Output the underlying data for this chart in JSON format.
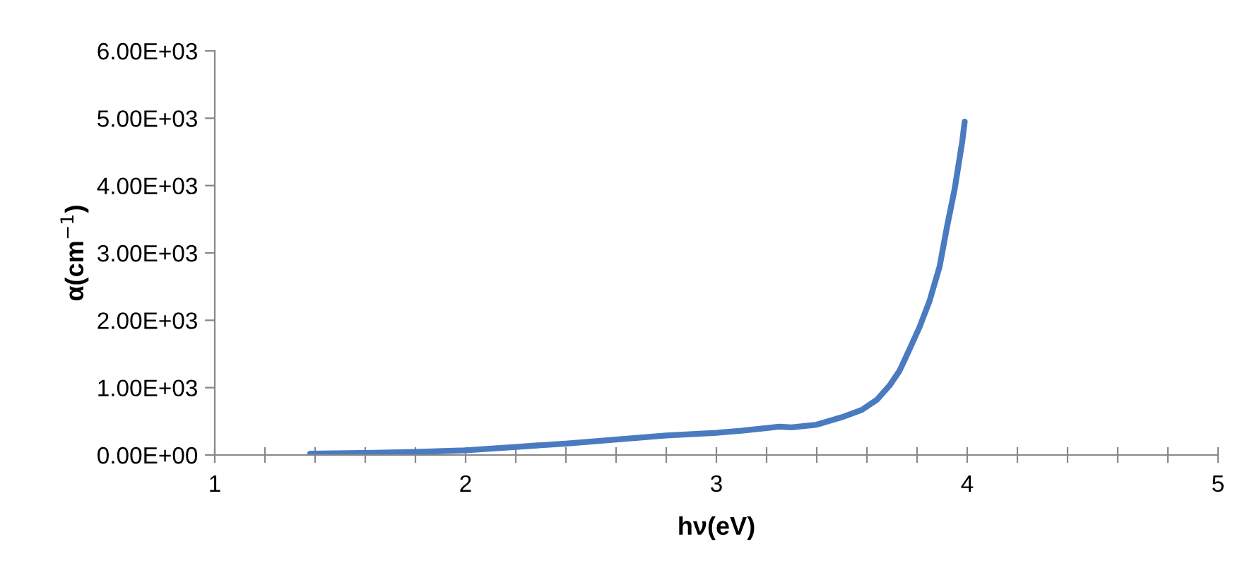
{
  "chart_data": {
    "type": "line",
    "xlabel": "hν(eV)",
    "ylabel": "α(cm$^{−1}$)",
    "series": [
      {
        "color": "#4a7bc0",
        "x": [
          1.38,
          1.6,
          1.8,
          2.0,
          2.2,
          2.4,
          2.6,
          2.8,
          3.0,
          3.1,
          3.2,
          3.25,
          3.3,
          3.4,
          3.5,
          3.58,
          3.64,
          3.69,
          3.73,
          3.77,
          3.81,
          3.85,
          3.89,
          3.92,
          3.95,
          3.98,
          3.99
        ],
        "values": [
          20,
          30,
          45,
          70,
          120,
          170,
          230,
          290,
          330,
          360,
          400,
          420,
          410,
          450,
          560,
          670,
          820,
          1030,
          1250,
          1570,
          1900,
          2290,
          2800,
          3400,
          3950,
          4650,
          4950
        ]
      }
    ],
    "xlim": [
      1,
      5
    ],
    "ylim": [
      0,
      6000
    ],
    "xticks": [
      1,
      {
        "value": 1.2,
        "label": null
      },
      {
        "value": 1.4,
        "label": null
      },
      {
        "value": 1.6,
        "label": null
      },
      {
        "value": 1.8,
        "label": null
      },
      2,
      {
        "value": 2.2,
        "label": null
      },
      {
        "value": 2.4,
        "label": null
      },
      {
        "value": 2.6,
        "label": null
      },
      {
        "value": 2.8,
        "label": null
      },
      3,
      {
        "value": 3.2,
        "label": null
      },
      {
        "value": 3.4,
        "label": null
      },
      {
        "value": 3.6,
        "label": null
      },
      {
        "value": 3.8,
        "label": null
      },
      4,
      {
        "value": 4.2,
        "label": null
      },
      {
        "value": 4.4,
        "label": null
      },
      {
        "value": 4.6,
        "label": null
      },
      {
        "value": 4.8,
        "label": null
      },
      5
    ],
    "yticks": [
      {
        "value": 0,
        "label": "0.00E+00"
      },
      {
        "value": 1000,
        "label": "1.00E+03"
      },
      {
        "value": 2000,
        "label": "2.00E+03"
      },
      {
        "value": 3000,
        "label": "3.00E+03"
      },
      {
        "value": 4000,
        "label": "4.00E+03"
      },
      {
        "value": 5000,
        "label": "5.00E+03"
      },
      {
        "value": 6000,
        "label": "6.00E+03"
      }
    ],
    "grid": false,
    "legend": false,
    "marker": "none",
    "line_style": "solid"
  }
}
